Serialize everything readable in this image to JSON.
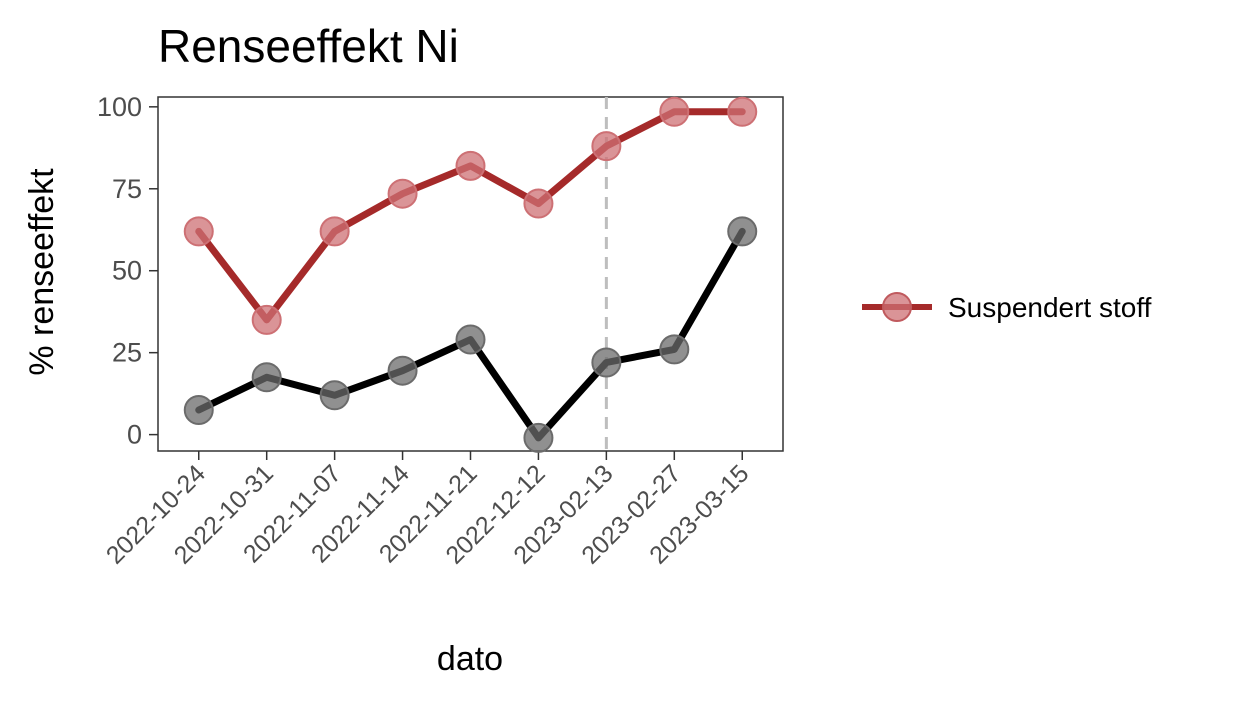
{
  "chart_data": {
    "type": "line",
    "title": "Renseeffekt Ni",
    "xlabel": "dato",
    "ylabel": "% renseeffekt",
    "categories": [
      "2022-10-24",
      "2022-10-31",
      "2022-11-07",
      "2022-11-14",
      "2022-11-21",
      "2022-12-12",
      "2023-02-13",
      "2023-02-27",
      "2023-03-15"
    ],
    "ylim": [
      -5,
      103
    ],
    "yticks": [
      0,
      25,
      50,
      75,
      100
    ],
    "grid": false,
    "series": [
      {
        "name": "Suspendert stoff",
        "color": "#a52a2a",
        "marker_color": "#cd7074",
        "values": [
          62,
          35,
          62,
          73.5,
          82,
          70.5,
          88,
          98.5,
          98.5
        ]
      },
      {
        "color": "#000000",
        "marker_color": "#6b6b6b",
        "values": [
          7.5,
          17.5,
          12,
          19.5,
          29,
          -1,
          22,
          26,
          62
        ]
      }
    ],
    "vline": {
      "x": "2023-02-13",
      "style": "dashed",
      "color": "#bebebe"
    },
    "legend": {
      "position": "right",
      "entries": [
        "Suspendert stoff"
      ]
    }
  }
}
